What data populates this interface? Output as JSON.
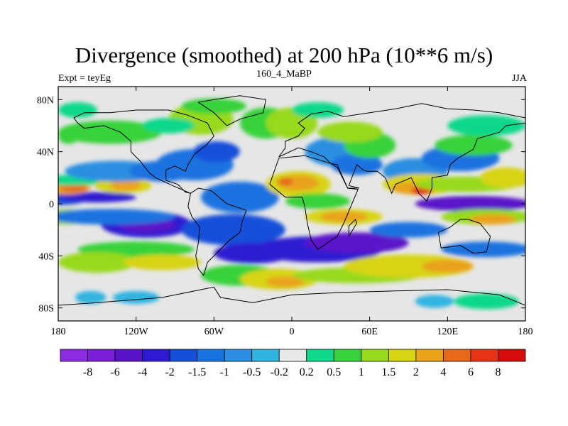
{
  "title": "Divergence (smoothed) at 200 hPa (10**6 m/s)",
  "left_string": "Expt = teyEg",
  "center_string": "160_4_MaBP",
  "right_string": "JJA",
  "map": {
    "lon_range": [
      -180,
      180
    ],
    "lat_range": [
      -90,
      90
    ],
    "lon_ticks": [
      {
        "value": -180,
        "label": "180"
      },
      {
        "value": -120,
        "label": "120W"
      },
      {
        "value": -60,
        "label": "60W"
      },
      {
        "value": 0,
        "label": "0"
      },
      {
        "value": 60,
        "label": "60E"
      },
      {
        "value": 120,
        "label": "120E"
      },
      {
        "value": 180,
        "label": "180"
      }
    ],
    "lat_ticks": [
      {
        "value": 80,
        "label": "80N"
      },
      {
        "value": 40,
        "label": "40N"
      },
      {
        "value": 0,
        "label": "0"
      },
      {
        "value": -40,
        "label": "40S"
      },
      {
        "value": -80,
        "label": "80S"
      }
    ],
    "background_color": "#e6e6e6"
  },
  "colorbar": {
    "colors": [
      "#8b2be2",
      "#7a1fd6",
      "#5a14c8",
      "#2e1ad1",
      "#1550d9",
      "#1a72df",
      "#2a8fe0",
      "#30b4e0",
      "#e8e8e8",
      "#10d88a",
      "#38d23a",
      "#98d91e",
      "#d7d414",
      "#e9a21a",
      "#e66a1a",
      "#e63416",
      "#d60b0b"
    ],
    "labels": [
      "-8",
      "-6",
      "-4",
      "-2",
      "-1.5",
      "-1",
      "-0.5",
      "-0.2",
      "0.2",
      "0.5",
      "1",
      "1.5",
      "2",
      "4",
      "6",
      "8"
    ]
  },
  "field_blobs": [
    {
      "lon": -178,
      "lat": 5,
      "rx": 22,
      "ry": 6,
      "c": 4
    },
    {
      "lon": -150,
      "lat": 5,
      "rx": 30,
      "ry": 4,
      "c": 3
    },
    {
      "lon": -175,
      "lat": 12,
      "rx": 20,
      "ry": 5,
      "c": 13
    },
    {
      "lon": -168,
      "lat": 12,
      "rx": 10,
      "ry": 3,
      "c": 14
    },
    {
      "lon": -175,
      "lat": -10,
      "rx": 25,
      "ry": 6,
      "c": 11
    },
    {
      "lon": -170,
      "lat": 18,
      "rx": 30,
      "ry": 4,
      "c": 9
    },
    {
      "lon": -130,
      "lat": 14,
      "rx": 22,
      "ry": 6,
      "c": 12
    },
    {
      "lon": -128,
      "lat": 14,
      "rx": 12,
      "ry": 4,
      "c": 13
    },
    {
      "lon": -135,
      "lat": 25,
      "rx": 40,
      "ry": 8,
      "c": 6
    },
    {
      "lon": -100,
      "lat": 25,
      "rx": 25,
      "ry": 8,
      "c": 5
    },
    {
      "lon": -112,
      "lat": -16,
      "rx": 35,
      "ry": 10,
      "c": 3
    },
    {
      "lon": -112,
      "lat": -16,
      "rx": 22,
      "ry": 6,
      "c": 2
    },
    {
      "lon": -140,
      "lat": -10,
      "rx": 50,
      "ry": 6,
      "c": 5
    },
    {
      "lon": -120,
      "lat": -35,
      "rx": 45,
      "ry": 6,
      "c": 10
    },
    {
      "lon": -150,
      "lat": -45,
      "rx": 30,
      "ry": 8,
      "c": 11
    },
    {
      "lon": -100,
      "lat": -45,
      "rx": 30,
      "ry": 6,
      "c": 12
    },
    {
      "lon": -140,
      "lat": 55,
      "rx": 40,
      "ry": 9,
      "c": 10
    },
    {
      "lon": -165,
      "lat": 72,
      "rx": 15,
      "ry": 6,
      "c": 9
    },
    {
      "lon": -172,
      "lat": 52,
      "rx": 8,
      "ry": 6,
      "c": 10
    },
    {
      "lon": -155,
      "lat": -72,
      "rx": 12,
      "ry": 5,
      "c": 7
    },
    {
      "lon": -120,
      "lat": -72,
      "rx": 18,
      "ry": 5,
      "c": 7
    },
    {
      "lon": -75,
      "lat": 30,
      "rx": 30,
      "ry": 12,
      "c": 5
    },
    {
      "lon": -58,
      "lat": 40,
      "rx": 18,
      "ry": 8,
      "c": 4
    },
    {
      "lon": -70,
      "lat": 65,
      "rx": 25,
      "ry": 12,
      "c": 11
    },
    {
      "lon": -60,
      "lat": 75,
      "rx": 25,
      "ry": 6,
      "c": 10
    },
    {
      "lon": -95,
      "lat": 60,
      "rx": 20,
      "ry": 6,
      "c": 9
    },
    {
      "lon": -40,
      "lat": 5,
      "rx": 30,
      "ry": 12,
      "c": 5
    },
    {
      "lon": -45,
      "lat": -20,
      "rx": 40,
      "ry": 12,
      "c": 4
    },
    {
      "lon": -30,
      "lat": -38,
      "rx": 30,
      "ry": 8,
      "c": 3
    },
    {
      "lon": -40,
      "lat": -55,
      "rx": 30,
      "ry": 8,
      "c": 10
    },
    {
      "lon": -10,
      "lat": -58,
      "rx": 30,
      "ry": 8,
      "c": 12
    },
    {
      "lon": -5,
      "lat": -60,
      "rx": 15,
      "ry": 4,
      "c": 13
    },
    {
      "lon": -20,
      "lat": 62,
      "rx": 20,
      "ry": 12,
      "c": 10
    },
    {
      "lon": 0,
      "lat": 62,
      "rx": 20,
      "ry": 12,
      "c": 11
    },
    {
      "lon": 20,
      "lat": 72,
      "rx": 20,
      "ry": 6,
      "c": 9
    },
    {
      "lon": 5,
      "lat": 15,
      "rx": 25,
      "ry": 10,
      "c": 12
    },
    {
      "lon": 5,
      "lat": 16,
      "rx": 16,
      "ry": 6,
      "c": 13
    },
    {
      "lon": -5,
      "lat": 17,
      "rx": 6,
      "ry": 3,
      "c": 14
    },
    {
      "lon": 20,
      "lat": 2,
      "rx": 25,
      "ry": 6,
      "c": 10
    },
    {
      "lon": 40,
      "lat": -10,
      "rx": 30,
      "ry": 6,
      "c": 12
    },
    {
      "lon": 40,
      "lat": -10,
      "rx": 18,
      "ry": 4,
      "c": 13
    },
    {
      "lon": 40,
      "lat": 40,
      "rx": 30,
      "ry": 12,
      "c": 6
    },
    {
      "lon": 50,
      "lat": 30,
      "rx": 20,
      "ry": 8,
      "c": 5
    },
    {
      "lon": 60,
      "lat": 45,
      "rx": 20,
      "ry": 10,
      "c": 10
    },
    {
      "lon": 45,
      "lat": 55,
      "rx": 25,
      "ry": 8,
      "c": 11
    },
    {
      "lon": 20,
      "lat": -35,
      "rx": 50,
      "ry": 10,
      "c": 3
    },
    {
      "lon": 50,
      "lat": -30,
      "rx": 40,
      "ry": 8,
      "c": 2
    },
    {
      "lon": 90,
      "lat": -20,
      "rx": 30,
      "ry": 6,
      "c": 5
    },
    {
      "lon": 50,
      "lat": -55,
      "rx": 50,
      "ry": 6,
      "c": 11
    },
    {
      "lon": 90,
      "lat": -48,
      "rx": 50,
      "ry": 9,
      "c": 12
    },
    {
      "lon": 120,
      "lat": -48,
      "rx": 20,
      "ry": 5,
      "c": 13
    },
    {
      "lon": 95,
      "lat": 25,
      "rx": 25,
      "ry": 10,
      "c": 6
    },
    {
      "lon": 100,
      "lat": 15,
      "rx": 30,
      "ry": 8,
      "c": 12
    },
    {
      "lon": 95,
      "lat": 12,
      "rx": 18,
      "ry": 5,
      "c": 13
    },
    {
      "lon": 100,
      "lat": 10,
      "rx": 8,
      "ry": 3,
      "c": 15
    },
    {
      "lon": 135,
      "lat": 15,
      "rx": 40,
      "ry": 6,
      "c": 11
    },
    {
      "lon": 140,
      "lat": 0,
      "rx": 45,
      "ry": 6,
      "c": 2
    },
    {
      "lon": 150,
      "lat": -10,
      "rx": 35,
      "ry": 6,
      "c": 11
    },
    {
      "lon": 155,
      "lat": -12,
      "rx": 18,
      "ry": 4,
      "c": 13
    },
    {
      "lon": 150,
      "lat": -35,
      "rx": 35,
      "ry": 6,
      "c": 5
    },
    {
      "lon": 130,
      "lat": 35,
      "rx": 30,
      "ry": 10,
      "c": 5
    },
    {
      "lon": 140,
      "lat": 45,
      "rx": 30,
      "ry": 8,
      "c": 10
    },
    {
      "lon": 165,
      "lat": 20,
      "rx": 20,
      "ry": 8,
      "c": 12
    },
    {
      "lon": 150,
      "lat": 60,
      "rx": 30,
      "ry": 8,
      "c": 9
    },
    {
      "lon": 110,
      "lat": -75,
      "rx": 15,
      "ry": 5,
      "c": 7
    },
    {
      "lon": 150,
      "lat": -75,
      "rx": 25,
      "ry": 6,
      "c": 9
    }
  ]
}
